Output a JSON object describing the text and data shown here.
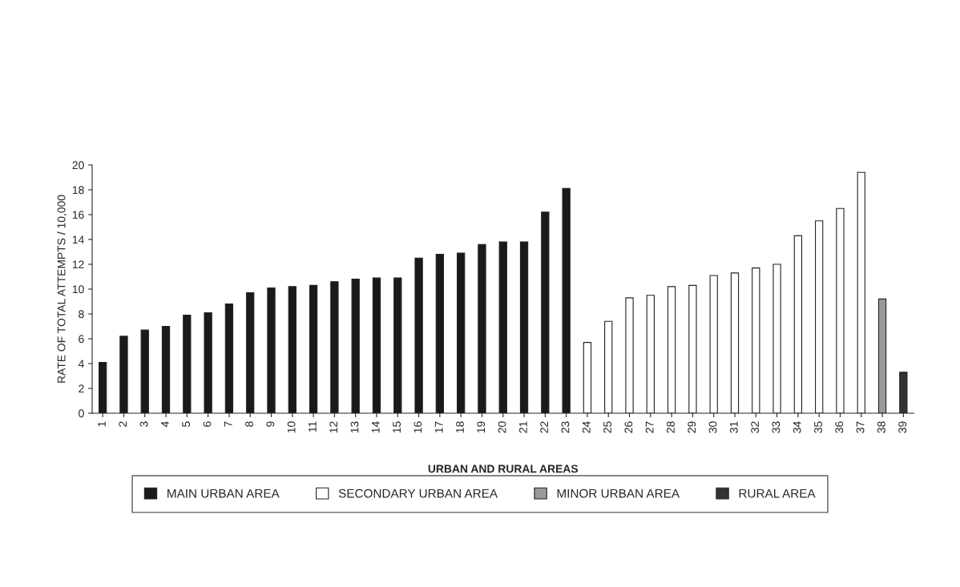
{
  "chart_data": {
    "type": "bar",
    "xlabel": "URBAN AND RURAL AREAS",
    "ylabel": "RATE OF TOTAL ATTEMPTS / 10,000",
    "categories": [
      "1",
      "2",
      "3",
      "4",
      "5",
      "6",
      "7",
      "8",
      "9",
      "10",
      "11",
      "12",
      "13",
      "14",
      "15",
      "16",
      "17",
      "18",
      "19",
      "20",
      "21",
      "22",
      "23",
      "24",
      "25",
      "26",
      "27",
      "28",
      "29",
      "30",
      "31",
      "32",
      "33",
      "34",
      "35",
      "36",
      "37",
      "38",
      "39"
    ],
    "series": [
      {
        "name": "MAIN URBAN AREA",
        "color": "#1a1a1a",
        "values": [
          4.1,
          6.2,
          6.7,
          7.0,
          7.9,
          8.1,
          8.8,
          9.7,
          10.1,
          10.2,
          10.3,
          10.6,
          10.8,
          10.9,
          10.9,
          12.5,
          12.8,
          12.9,
          13.6,
          13.8,
          13.8,
          16.2,
          18.1,
          null,
          null,
          null,
          null,
          null,
          null,
          null,
          null,
          null,
          null,
          null,
          null,
          null,
          null,
          null,
          null
        ]
      },
      {
        "name": "SECONDARY URBAN AREA",
        "color": "#ffffff",
        "values": [
          null,
          null,
          null,
          null,
          null,
          null,
          null,
          null,
          null,
          null,
          null,
          null,
          null,
          null,
          null,
          null,
          null,
          null,
          null,
          null,
          null,
          null,
          null,
          5.7,
          7.4,
          9.3,
          9.5,
          10.2,
          10.3,
          11.1,
          11.3,
          11.7,
          12.0,
          14.3,
          15.5,
          16.5,
          19.4,
          null,
          null
        ]
      },
      {
        "name": "MINOR URBAN AREA",
        "color": "#999999",
        "values": [
          null,
          null,
          null,
          null,
          null,
          null,
          null,
          null,
          null,
          null,
          null,
          null,
          null,
          null,
          null,
          null,
          null,
          null,
          null,
          null,
          null,
          null,
          null,
          null,
          null,
          null,
          null,
          null,
          null,
          null,
          null,
          null,
          null,
          null,
          null,
          null,
          null,
          9.2,
          null
        ]
      },
      {
        "name": "RURAL AREA",
        "color": "#333333",
        "values": [
          null,
          null,
          null,
          null,
          null,
          null,
          null,
          null,
          null,
          null,
          null,
          null,
          null,
          null,
          null,
          null,
          null,
          null,
          null,
          null,
          null,
          null,
          null,
          null,
          null,
          null,
          null,
          null,
          null,
          null,
          null,
          null,
          null,
          null,
          null,
          null,
          null,
          null,
          3.3
        ]
      }
    ],
    "ylim": [
      0,
      20
    ],
    "yticks": [
      0,
      2,
      4,
      6,
      8,
      10,
      12,
      14,
      16,
      18,
      20
    ],
    "grid": false,
    "legend": "bottom"
  }
}
